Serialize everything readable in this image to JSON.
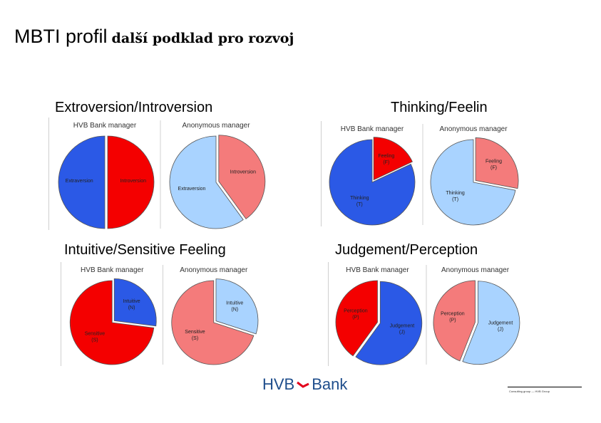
{
  "title": {
    "main": "MBTI profil",
    "sub": "další podklad pro rozvoj"
  },
  "colors": {
    "red": "#f40000",
    "blue": "#2b59e6",
    "pink": "#f47b7b",
    "lightblue": "#a9d3ff",
    "brand": "#1f4e8c",
    "logo_red": "#e3001b"
  },
  "logo": {
    "left": "HVB",
    "right": "Bank"
  },
  "footer": "Consulting group — HVB Group",
  "chart_data": [
    {
      "type": "pie",
      "title": "Extroversion/Introversion",
      "panels": [
        {
          "title": "HVB Bank manager",
          "slices": [
            {
              "label": "Introversion",
              "value": 50,
              "color": "red"
            },
            {
              "label": "Extraversion",
              "value": 50,
              "color": "blue"
            }
          ]
        },
        {
          "title": "Anonymous manager",
          "slices": [
            {
              "label": "Introversion",
              "value": 40,
              "color": "pink"
            },
            {
              "label": "Extraversion",
              "value": 60,
              "color": "lightblue"
            }
          ]
        }
      ]
    },
    {
      "type": "pie",
      "title": "Thinking/Feelin",
      "panels": [
        {
          "title": "HVB Bank manager",
          "slices": [
            {
              "label": "Feeling (F)",
              "value": 18,
              "color": "red"
            },
            {
              "label": "Thinking (T)",
              "value": 82,
              "color": "blue"
            }
          ]
        },
        {
          "title": "Anonymous manager",
          "slices": [
            {
              "label": "Feeling (F)",
              "value": 28,
              "color": "pink"
            },
            {
              "label": "Thinking (T)",
              "value": 72,
              "color": "lightblue"
            }
          ]
        }
      ]
    },
    {
      "type": "pie",
      "title": "Intuitive/Sensitive Feeling",
      "panels": [
        {
          "title": "HVB Bank manager",
          "slices": [
            {
              "label": "Intuitive (N)",
              "value": 27,
              "color": "blue"
            },
            {
              "label": "Sensitive (S)",
              "value": 73,
              "color": "red"
            }
          ]
        },
        {
          "title": "Anonymous manager",
          "slices": [
            {
              "label": "Intuitive (N)",
              "value": 30,
              "color": "lightblue"
            },
            {
              "label": "Sensitive (S)",
              "value": 70,
              "color": "pink"
            }
          ]
        }
      ]
    },
    {
      "type": "pie",
      "title": "Judgement/Perception",
      "panels": [
        {
          "title": "HVB Bank manager",
          "slices": [
            {
              "label": "Judgement (J)",
              "value": 60,
              "color": "blue"
            },
            {
              "label": "Perception (P)",
              "value": 40,
              "color": "red"
            }
          ]
        },
        {
          "title": "Anonymous manager",
          "slices": [
            {
              "label": "Judgement (J)",
              "value": 56,
              "color": "lightblue"
            },
            {
              "label": "Perception (P)",
              "value": 44,
              "color": "pink"
            }
          ]
        }
      ]
    }
  ]
}
